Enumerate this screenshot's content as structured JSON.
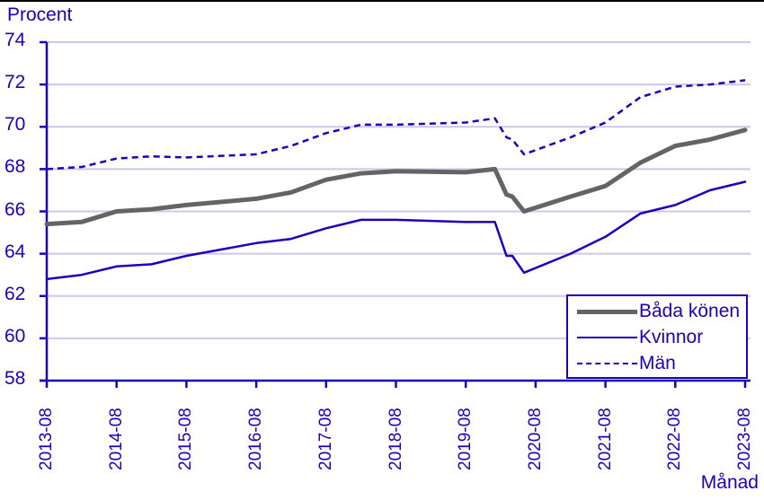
{
  "chart_data": {
    "type": "line",
    "title": "",
    "ylabel": "Procent",
    "xlabel": "Månad",
    "ylim": [
      58,
      74
    ],
    "yticks": [
      74,
      72,
      70,
      68,
      66,
      64,
      62,
      60,
      58
    ],
    "xticks": [
      "2013-08",
      "2014-08",
      "2015-08",
      "2016-08",
      "2017-08",
      "2018-08",
      "2019-08",
      "2020-08",
      "2021-08",
      "2022-08",
      "2023-08"
    ],
    "grid": true,
    "legend_position": "lower right",
    "x": [
      "2013-08",
      "2014-02",
      "2014-08",
      "2015-02",
      "2015-08",
      "2016-08",
      "2017-02",
      "2017-08",
      "2018-02",
      "2018-08",
      "2019-08",
      "2020-01",
      "2020-03",
      "2020-04",
      "2020-06",
      "2021-02",
      "2021-08",
      "2022-02",
      "2022-08",
      "2023-02",
      "2023-08"
    ],
    "series": [
      {
        "name": "Båda könen",
        "color": "#646464",
        "style": "solid",
        "width": 5,
        "values": [
          65.4,
          65.5,
          66.0,
          66.1,
          66.3,
          66.6,
          66.9,
          67.5,
          67.8,
          67.9,
          67.85,
          68.0,
          66.8,
          66.7,
          66.0,
          66.7,
          67.2,
          68.3,
          69.1,
          69.4,
          69.85
        ]
      },
      {
        "name": "Kvinnor",
        "color": "#1a00c0",
        "style": "solid",
        "width": 2.5,
        "values": [
          62.8,
          63.0,
          63.4,
          63.5,
          63.9,
          64.5,
          64.7,
          65.2,
          65.6,
          65.6,
          65.5,
          65.5,
          63.9,
          63.9,
          63.1,
          64.0,
          64.8,
          65.9,
          66.3,
          67.0,
          67.4
        ]
      },
      {
        "name": "Män",
        "color": "#1a00c0",
        "style": "dashed",
        "width": 2.5,
        "values": [
          68.0,
          68.1,
          68.5,
          68.6,
          68.55,
          68.7,
          69.1,
          69.7,
          70.1,
          70.1,
          70.2,
          70.4,
          69.5,
          69.4,
          68.7,
          69.5,
          70.2,
          71.4,
          71.9,
          72.0,
          72.2
        ]
      }
    ]
  },
  "labels": {
    "y_title": "Procent",
    "x_title": "Månad",
    "legend": [
      "Båda könen",
      "Kvinnor",
      "Män"
    ]
  },
  "colors": {
    "axis": "#1a00c0",
    "grid": "#ccc8ea",
    "both": "#646464"
  }
}
